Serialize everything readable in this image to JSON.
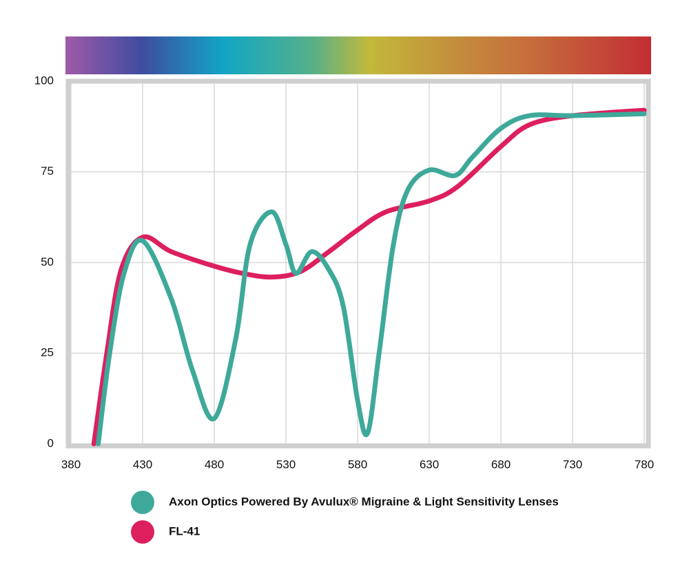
{
  "chart_data": {
    "type": "line",
    "xlim": [
      380,
      780
    ],
    "ylim": [
      0,
      100
    ],
    "xticks": [
      380,
      430,
      480,
      530,
      580,
      630,
      680,
      730,
      780
    ],
    "yticks": [
      0,
      25,
      50,
      75,
      100
    ],
    "grid": true,
    "series": [
      {
        "name": "Axon Optics Powered By Avulux® Migraine & Light Sensitivity Lenses",
        "color": "#3ea99a",
        "x": [
          399,
          407,
          417,
          430,
          450,
          465,
          480,
          495,
          505,
          520,
          530,
          537,
          548,
          560,
          570,
          580,
          587,
          595,
          605,
          615,
          630,
          648,
          660,
          680,
          700,
          730,
          780
        ],
        "values": [
          0,
          25,
          47,
          56,
          40,
          20,
          7,
          29,
          55,
          64,
          55,
          47,
          53,
          48,
          38,
          12,
          3,
          25,
          55,
          70,
          75.5,
          74,
          79,
          87,
          90.5,
          90.5,
          91
        ]
      },
      {
        "name": "FL-41",
        "color": "#dd1f5e",
        "x": [
          396,
          405,
          415,
          430,
          450,
          480,
          500,
          520,
          540,
          560,
          580,
          600,
          630,
          650,
          680,
          700,
          730,
          780
        ],
        "values": [
          0,
          25,
          48,
          57,
          53,
          49,
          47,
          46,
          47.5,
          53,
          59,
          64,
          67,
          71,
          82,
          88,
          90.5,
          92
        ]
      }
    ]
  }
}
